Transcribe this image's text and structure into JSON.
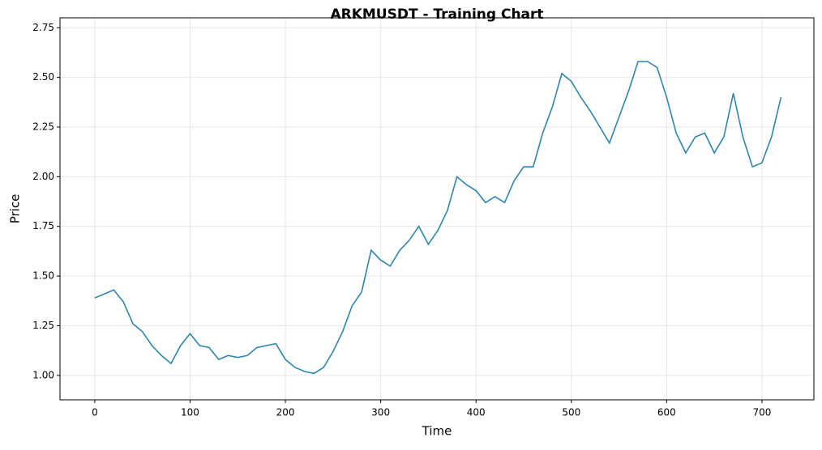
{
  "chart_data": {
    "type": "line",
    "title": "ARKMUSDT - Training Chart",
    "x_label": "Time",
    "y_label": "Price",
    "x": [
      0,
      10,
      20,
      30,
      40,
      50,
      60,
      70,
      80,
      90,
      100,
      110,
      120,
      130,
      140,
      150,
      160,
      170,
      180,
      190,
      200,
      210,
      220,
      230,
      240,
      250,
      260,
      270,
      280,
      290,
      300,
      310,
      320,
      330,
      340,
      350,
      360,
      370,
      380,
      390,
      400,
      410,
      420,
      430,
      440,
      450,
      460,
      470,
      480,
      490,
      500,
      510,
      520,
      530,
      540,
      550,
      560,
      570,
      580,
      590,
      600,
      610,
      620,
      630,
      640,
      650,
      660,
      670,
      680,
      690,
      700,
      710,
      720
    ],
    "series": [
      {
        "name": "ARKMUSDT",
        "color": "#2e86ab",
        "values": [
          1.39,
          1.41,
          1.43,
          1.37,
          1.26,
          1.22,
          1.15,
          1.1,
          1.06,
          1.15,
          1.21,
          1.15,
          1.14,
          1.08,
          1.1,
          1.09,
          1.1,
          1.14,
          1.15,
          1.16,
          1.08,
          1.04,
          1.02,
          1.01,
          1.04,
          1.12,
          1.22,
          1.35,
          1.42,
          1.63,
          1.58,
          1.55,
          1.63,
          1.68,
          1.75,
          1.66,
          1.73,
          1.83,
          2.0,
          1.96,
          1.93,
          1.87,
          1.9,
          1.87,
          1.98,
          2.05,
          2.05,
          2.22,
          2.35,
          2.52,
          2.48,
          2.4,
          2.33,
          2.25,
          2.17,
          2.3,
          2.43,
          2.58,
          2.58,
          2.55,
          2.4,
          2.22,
          2.12,
          2.2,
          2.22,
          2.12,
          2.2,
          2.42,
          2.2,
          2.05,
          2.07,
          2.2,
          2.4
        ]
      }
    ],
    "xlim": [
      -36.5,
      754.5
    ],
    "ylim": [
      0.877,
      2.8
    ],
    "xticks": [
      0,
      100,
      200,
      300,
      400,
      500,
      600,
      700
    ],
    "yticks": [
      {
        "value": 1,
        "label": "1.00"
      },
      {
        "value": 1.25,
        "label": "1.25"
      },
      {
        "value": 1.5,
        "label": "1.50"
      },
      {
        "value": 1.75,
        "label": "1.75"
      },
      {
        "value": 2,
        "label": "2.00"
      },
      {
        "value": 2.25,
        "label": "2.25"
      },
      {
        "value": 2.5,
        "label": "2.50"
      },
      {
        "value": 2.75,
        "label": "2.75"
      }
    ],
    "grid": true
  }
}
